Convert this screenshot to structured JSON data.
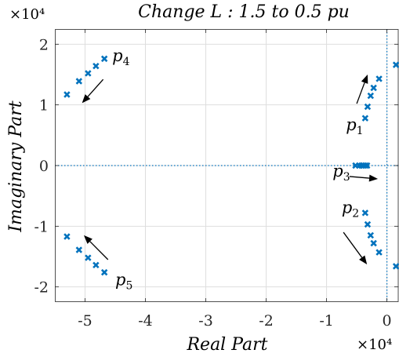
{
  "chart_data": {
    "type": "scatter",
    "title": "Change L : 1.5 to 0.5 pu",
    "xlabel": "Real Part",
    "ylabel": "Imaginary Part",
    "x_exponent": "×10⁴",
    "y_exponent": "×10⁴",
    "xlim": [
      -5.5,
      0.2
    ],
    "ylim": [
      -2.25,
      2.25
    ],
    "x_ticks": [
      -5,
      -4,
      -3,
      -2,
      -1,
      0
    ],
    "x_tick_labels": [
      "-5",
      "-4",
      "-3",
      "-2",
      "-1",
      "0"
    ],
    "y_ticks": [
      -2,
      -1,
      0,
      1,
      2
    ],
    "y_tick_labels": [
      "-2",
      "-1",
      "0",
      "1",
      "2"
    ],
    "grid": true,
    "marker_color": "#0072BD",
    "reference_lines": [
      {
        "orientation": "horizontal",
        "value": 0
      },
      {
        "orientation": "vertical",
        "value": 0
      }
    ],
    "series": [
      {
        "x": [
          -5.3,
          -5.1,
          -4.95,
          -4.82,
          -4.68
        ],
        "y": [
          1.17,
          1.39,
          1.52,
          1.64,
          1.76
        ]
      },
      {
        "x": [
          -5.3,
          -5.1,
          -4.95,
          -4.82,
          -4.68
        ],
        "y": [
          -1.17,
          -1.39,
          -1.52,
          -1.64,
          -1.76
        ]
      },
      {
        "x": [
          -0.36,
          -0.32,
          -0.27,
          -0.22,
          -0.13,
          0.15
        ],
        "y": [
          0.78,
          0.97,
          1.15,
          1.28,
          1.43,
          1.66
        ]
      },
      {
        "x": [
          -0.36,
          -0.32,
          -0.27,
          -0.22,
          -0.13,
          0.15
        ],
        "y": [
          -0.78,
          -0.97,
          -1.15,
          -1.28,
          -1.43,
          -1.66
        ]
      },
      {
        "x": [
          -0.52,
          -0.46,
          -0.42,
          -0.39,
          -0.36,
          -0.33
        ],
        "y": [
          0,
          0,
          0,
          0,
          0,
          0
        ]
      }
    ],
    "annotations": [
      {
        "base": "p",
        "sub": "4",
        "x": -4.55,
        "y": 1.72
      },
      {
        "base": "p",
        "sub": "1",
        "x": -0.68,
        "y": 0.58
      },
      {
        "base": "p",
        "sub": "3",
        "x": -0.9,
        "y": -0.18
      },
      {
        "base": "p",
        "sub": "2",
        "x": -0.75,
        "y": -0.78
      },
      {
        "base": "p",
        "sub": "5",
        "x": -4.5,
        "y": -1.97
      }
    ],
    "arrows": [
      {
        "x1": -4.7,
        "y1": 1.42,
        "x2": -5.05,
        "y2": 1.03
      },
      {
        "x1": -0.5,
        "y1": 1.02,
        "x2": -0.32,
        "y2": 1.5
      },
      {
        "x1": -0.62,
        "y1": -0.18,
        "x2": -0.15,
        "y2": -0.22
      },
      {
        "x1": -0.72,
        "y1": -1.1,
        "x2": -0.33,
        "y2": -1.63
      },
      {
        "x1": -4.62,
        "y1": -1.55,
        "x2": -5.02,
        "y2": -1.15
      }
    ]
  }
}
